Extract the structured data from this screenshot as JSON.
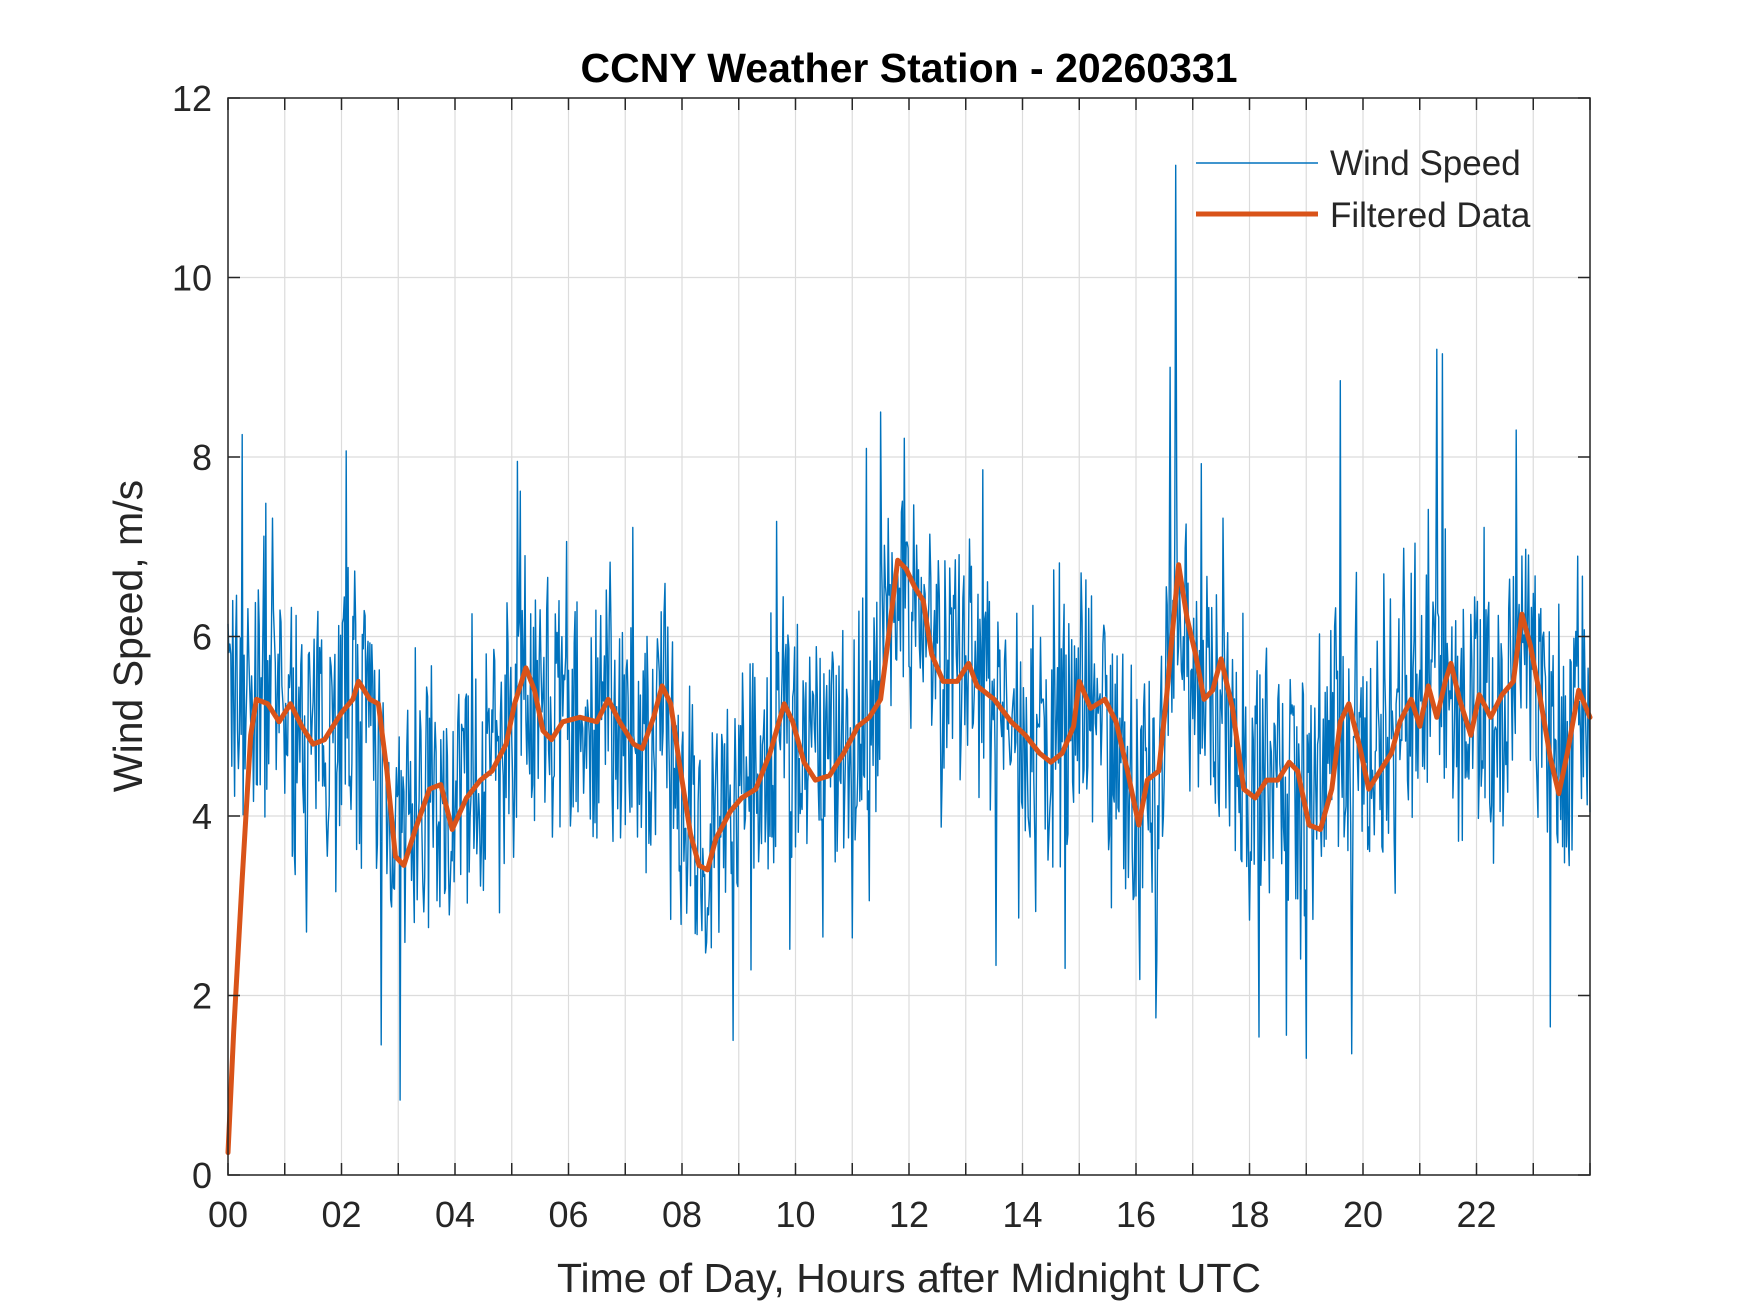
{
  "chart_data": {
    "type": "line",
    "title": "CCNY Weather Station - 20260331",
    "xlabel": "Time of Day, Hours after Midnight UTC",
    "ylabel": "Wind Speed, m/s",
    "xlim": [
      0,
      24
    ],
    "ylim": [
      0,
      12
    ],
    "xticks": [
      0,
      2,
      4,
      6,
      8,
      10,
      12,
      14,
      16,
      18,
      20,
      22
    ],
    "xtick_labels": [
      "00",
      "02",
      "04",
      "06",
      "08",
      "10",
      "12",
      "14",
      "16",
      "18",
      "20",
      "22"
    ],
    "yticks": [
      0,
      2,
      4,
      6,
      8,
      10,
      12
    ],
    "ytick_labels": [
      "0",
      "2",
      "4",
      "6",
      "8",
      "10",
      "12"
    ],
    "grid": true,
    "minor_grid_x_step": 1,
    "legend_position": "top-right",
    "series": [
      {
        "name": "Wind Speed",
        "color": "#0072BD",
        "style": "thin",
        "noise_seed": 7,
        "samples": 1440,
        "points": [
          [
            0.0,
            5.3
          ],
          [
            0.3,
            5.4
          ],
          [
            0.6,
            5.3
          ],
          [
            1.0,
            5.1
          ],
          [
            1.5,
            4.9
          ],
          [
            2.0,
            5.3
          ],
          [
            2.3,
            5.5
          ],
          [
            2.7,
            4.6
          ],
          [
            3.0,
            3.6
          ],
          [
            3.4,
            4.1
          ],
          [
            3.8,
            4.1
          ],
          [
            4.2,
            4.4
          ],
          [
            4.6,
            4.6
          ],
          [
            5.0,
            5.3
          ],
          [
            5.3,
            5.6
          ],
          [
            5.6,
            5.0
          ],
          [
            6.0,
            5.1
          ],
          [
            6.5,
            5.1
          ],
          [
            7.0,
            5.0
          ],
          [
            7.4,
            4.8
          ],
          [
            7.7,
            5.3
          ],
          [
            8.0,
            4.2
          ],
          [
            8.3,
            3.6
          ],
          [
            8.6,
            3.9
          ],
          [
            9.0,
            4.2
          ],
          [
            9.5,
            4.8
          ],
          [
            9.8,
            5.2
          ],
          [
            10.2,
            4.5
          ],
          [
            10.6,
            4.6
          ],
          [
            11.0,
            5.1
          ],
          [
            11.5,
            5.5
          ],
          [
            11.8,
            6.9
          ],
          [
            12.2,
            6.6
          ],
          [
            12.5,
            5.7
          ],
          [
            13.0,
            5.6
          ],
          [
            13.5,
            5.3
          ],
          [
            14.0,
            4.9
          ],
          [
            14.5,
            4.6
          ],
          [
            15.0,
            5.3
          ],
          [
            15.5,
            5.2
          ],
          [
            16.0,
            4.0
          ],
          [
            16.4,
            4.5
          ],
          [
            16.7,
            6.6
          ],
          [
            17.0,
            5.6
          ],
          [
            17.4,
            5.6
          ],
          [
            18.0,
            4.3
          ],
          [
            18.5,
            4.5
          ],
          [
            19.0,
            3.9
          ],
          [
            19.5,
            5.2
          ],
          [
            20.0,
            4.4
          ],
          [
            20.5,
            5.0
          ],
          [
            21.0,
            5.3
          ],
          [
            21.5,
            5.4
          ],
          [
            22.0,
            5.1
          ],
          [
            22.5,
            5.4
          ],
          [
            22.8,
            6.2
          ],
          [
            23.2,
            5.1
          ],
          [
            23.5,
            4.3
          ],
          [
            23.8,
            5.4
          ],
          [
            24.0,
            5.2
          ]
        ],
        "spikes": [
          [
            0.25,
            8.25
          ],
          [
            5.1,
            7.95
          ],
          [
            11.5,
            8.5
          ],
          [
            16.7,
            11.25
          ],
          [
            16.6,
            9.0
          ],
          [
            19.6,
            8.85
          ],
          [
            21.3,
            9.2
          ],
          [
            21.4,
            9.15
          ],
          [
            22.7,
            8.3
          ],
          [
            2.7,
            1.45
          ],
          [
            8.9,
            1.5
          ],
          [
            19.0,
            1.3
          ],
          [
            19.8,
            1.35
          ],
          [
            23.3,
            1.65
          ],
          [
            16.35,
            1.75
          ]
        ]
      },
      {
        "name": "Filtered Data",
        "color": "#D95319",
        "style": "thick",
        "points": [
          [
            0.0,
            0.25
          ],
          [
            0.1,
            1.6
          ],
          [
            0.25,
            3.3
          ],
          [
            0.4,
            4.9
          ],
          [
            0.5,
            5.3
          ],
          [
            0.7,
            5.25
          ],
          [
            0.9,
            5.05
          ],
          [
            1.1,
            5.25
          ],
          [
            1.3,
            5.0
          ],
          [
            1.5,
            4.8
          ],
          [
            1.7,
            4.85
          ],
          [
            2.0,
            5.15
          ],
          [
            2.2,
            5.3
          ],
          [
            2.3,
            5.5
          ],
          [
            2.5,
            5.3
          ],
          [
            2.65,
            5.25
          ],
          [
            2.8,
            4.5
          ],
          [
            2.95,
            3.55
          ],
          [
            3.1,
            3.45
          ],
          [
            3.3,
            3.85
          ],
          [
            3.55,
            4.3
          ],
          [
            3.75,
            4.35
          ],
          [
            3.95,
            3.85
          ],
          [
            4.2,
            4.2
          ],
          [
            4.45,
            4.4
          ],
          [
            4.65,
            4.5
          ],
          [
            4.9,
            4.8
          ],
          [
            5.05,
            5.25
          ],
          [
            5.25,
            5.65
          ],
          [
            5.4,
            5.4
          ],
          [
            5.55,
            4.95
          ],
          [
            5.7,
            4.85
          ],
          [
            5.9,
            5.05
          ],
          [
            6.2,
            5.1
          ],
          [
            6.5,
            5.05
          ],
          [
            6.7,
            5.3
          ],
          [
            6.9,
            5.05
          ],
          [
            7.15,
            4.8
          ],
          [
            7.3,
            4.75
          ],
          [
            7.5,
            5.1
          ],
          [
            7.65,
            5.45
          ],
          [
            7.8,
            5.25
          ],
          [
            7.95,
            4.6
          ],
          [
            8.15,
            3.8
          ],
          [
            8.3,
            3.45
          ],
          [
            8.45,
            3.4
          ],
          [
            8.6,
            3.75
          ],
          [
            8.85,
            4.05
          ],
          [
            9.05,
            4.2
          ],
          [
            9.3,
            4.3
          ],
          [
            9.55,
            4.7
          ],
          [
            9.8,
            5.25
          ],
          [
            9.95,
            5.05
          ],
          [
            10.15,
            4.6
          ],
          [
            10.35,
            4.4
          ],
          [
            10.6,
            4.45
          ],
          [
            10.85,
            4.7
          ],
          [
            11.1,
            5.0
          ],
          [
            11.3,
            5.1
          ],
          [
            11.5,
            5.3
          ],
          [
            11.65,
            6.05
          ],
          [
            11.8,
            6.85
          ],
          [
            11.95,
            6.75
          ],
          [
            12.1,
            6.55
          ],
          [
            12.25,
            6.4
          ],
          [
            12.4,
            5.8
          ],
          [
            12.6,
            5.5
          ],
          [
            12.85,
            5.5
          ],
          [
            13.05,
            5.7
          ],
          [
            13.2,
            5.45
          ],
          [
            13.5,
            5.3
          ],
          [
            13.8,
            5.05
          ],
          [
            14.05,
            4.9
          ],
          [
            14.3,
            4.7
          ],
          [
            14.5,
            4.6
          ],
          [
            14.7,
            4.7
          ],
          [
            14.9,
            5.0
          ],
          [
            15.0,
            5.5
          ],
          [
            15.2,
            5.2
          ],
          [
            15.45,
            5.3
          ],
          [
            15.65,
            5.05
          ],
          [
            15.85,
            4.5
          ],
          [
            16.05,
            3.9
          ],
          [
            16.2,
            4.4
          ],
          [
            16.4,
            4.5
          ],
          [
            16.55,
            5.4
          ],
          [
            16.75,
            6.8
          ],
          [
            16.9,
            6.2
          ],
          [
            17.05,
            5.8
          ],
          [
            17.2,
            5.3
          ],
          [
            17.35,
            5.4
          ],
          [
            17.5,
            5.75
          ],
          [
            17.7,
            5.2
          ],
          [
            17.9,
            4.3
          ],
          [
            18.1,
            4.2
          ],
          [
            18.3,
            4.4
          ],
          [
            18.5,
            4.4
          ],
          [
            18.7,
            4.6
          ],
          [
            18.85,
            4.5
          ],
          [
            19.05,
            3.9
          ],
          [
            19.25,
            3.85
          ],
          [
            19.45,
            4.3
          ],
          [
            19.6,
            5.05
          ],
          [
            19.75,
            5.25
          ],
          [
            19.95,
            4.75
          ],
          [
            20.1,
            4.3
          ],
          [
            20.3,
            4.5
          ],
          [
            20.5,
            4.7
          ],
          [
            20.65,
            5.05
          ],
          [
            20.85,
            5.3
          ],
          [
            21.0,
            5.0
          ],
          [
            21.15,
            5.45
          ],
          [
            21.3,
            5.1
          ],
          [
            21.45,
            5.5
          ],
          [
            21.55,
            5.7
          ],
          [
            21.7,
            5.3
          ],
          [
            21.9,
            4.9
          ],
          [
            22.05,
            5.35
          ],
          [
            22.25,
            5.1
          ],
          [
            22.45,
            5.35
          ],
          [
            22.65,
            5.5
          ],
          [
            22.8,
            6.25
          ],
          [
            22.95,
            5.9
          ],
          [
            23.1,
            5.4
          ],
          [
            23.3,
            4.65
          ],
          [
            23.45,
            4.25
          ],
          [
            23.6,
            4.7
          ],
          [
            23.8,
            5.4
          ],
          [
            24.0,
            5.1
          ]
        ]
      }
    ]
  }
}
